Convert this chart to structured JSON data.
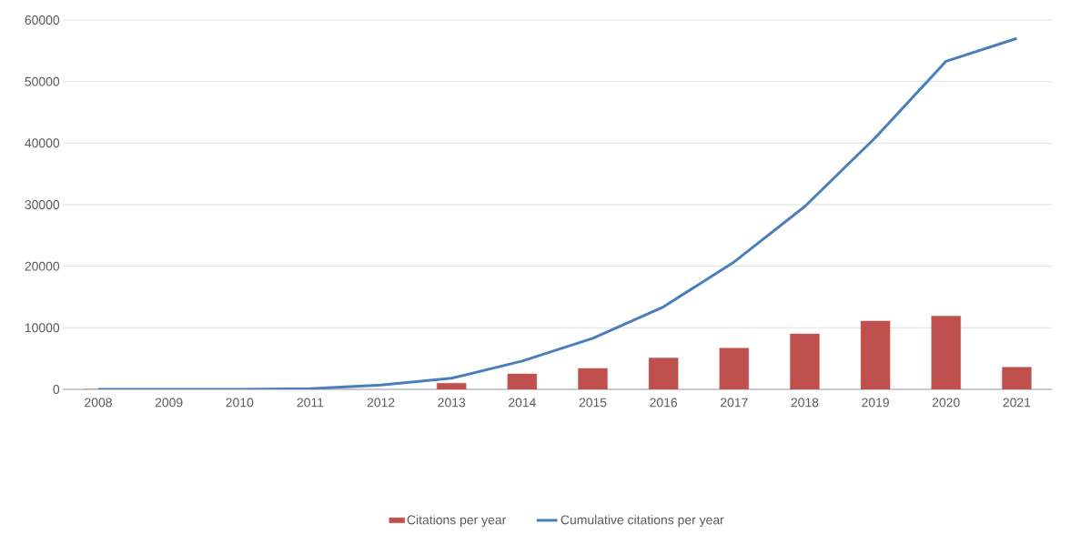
{
  "chart_data": {
    "type": "bar",
    "categories": [
      "2008",
      "2009",
      "2010",
      "2011",
      "2012",
      "2013",
      "2014",
      "2015",
      "2016",
      "2017",
      "2018",
      "2019",
      "2020",
      "2021"
    ],
    "series": [
      {
        "name": "Citations per year",
        "color": "#c0504d",
        "values": [
          0,
          0,
          0,
          null,
          null,
          1000,
          2500,
          3400,
          5100,
          6700,
          9000,
          11100,
          11900,
          3600
        ]
      },
      {
        "name": "Cumulative citations per year",
        "type": "line",
        "color": "#4a7ebb",
        "values": [
          0,
          0,
          0,
          100,
          700,
          1800,
          4600,
          8300,
          13400,
          20700,
          29700,
          40900,
          53300,
          57000
        ]
      }
    ],
    "ylim": [
      0,
      60000
    ],
    "yticks": [
      0,
      10000,
      20000,
      30000,
      40000,
      50000,
      60000
    ],
    "grid": "y",
    "legend": "bottom"
  }
}
